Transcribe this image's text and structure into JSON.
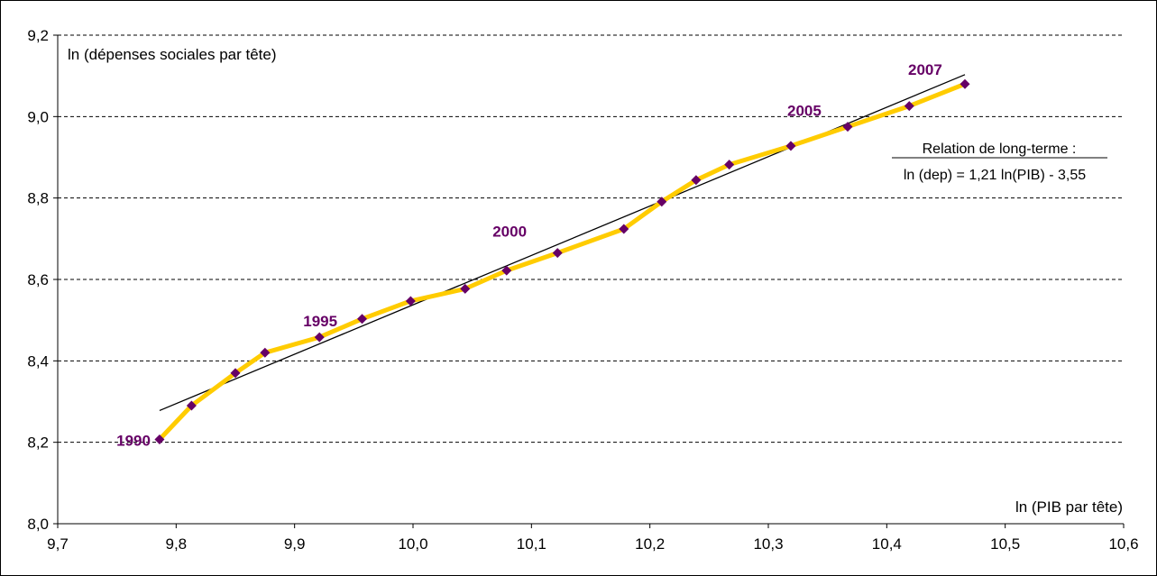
{
  "chart_data": {
    "type": "line",
    "ylabel": "ln (dépenses sociales par tête)",
    "xlabel": "ln (PIB par tête)",
    "xlim": [
      9.7,
      10.6
    ],
    "ylim": [
      8.0,
      9.2
    ],
    "x_ticks": [
      "9,7",
      "9,8",
      "9,9",
      "10,0",
      "10,1",
      "10,2",
      "10,3",
      "10,4",
      "10,5",
      "10,6"
    ],
    "y_ticks": [
      "8,0",
      "8,2",
      "8,4",
      "8,6",
      "8,8",
      "9,0",
      "9,2"
    ],
    "grid": "horizontal dashed",
    "series": [
      {
        "points": [
          {
            "x": 9.786,
            "y": 8.207
          },
          {
            "x": 9.813,
            "y": 8.29
          },
          {
            "x": 9.85,
            "y": 8.37
          },
          {
            "x": 9.875,
            "y": 8.42
          },
          {
            "x": 9.921,
            "y": 8.458
          },
          {
            "x": 9.957,
            "y": 8.503
          },
          {
            "x": 9.998,
            "y": 8.547
          },
          {
            "x": 10.044,
            "y": 8.577
          },
          {
            "x": 10.079,
            "y": 8.622
          },
          {
            "x": 10.122,
            "y": 8.665
          },
          {
            "x": 10.178,
            "y": 8.724
          },
          {
            "x": 10.21,
            "y": 8.791
          },
          {
            "x": 10.239,
            "y": 8.844
          },
          {
            "x": 10.267,
            "y": 8.882
          },
          {
            "x": 10.319,
            "y": 8.928
          },
          {
            "x": 10.367,
            "y": 8.975
          },
          {
            "x": 10.419,
            "y": 9.026
          },
          {
            "x": 10.466,
            "y": 9.08
          }
        ],
        "color": "#ffcc00",
        "marker_color": "#660066"
      }
    ],
    "trend_line": {
      "x_start": 9.786,
      "x_end": 10.466,
      "y_start": 8.278,
      "y_end": 9.103,
      "color": "#000000"
    },
    "year_labels": [
      {
        "text": "1990",
        "x": 9.786,
        "y": 8.207
      },
      {
        "text": "1995",
        "x": 9.921,
        "y": 8.458
      },
      {
        "text": "2000",
        "x": 10.122,
        "y": 8.665
      },
      {
        "text": "2005",
        "x": 10.367,
        "y": 8.975
      },
      {
        "text": "2007",
        "x": 10.466,
        "y": 9.08
      }
    ],
    "annotation": {
      "title": "Relation de long-terme :",
      "equation": "ln (dep) = 1,21 ln(PIB) - 3,55"
    }
  }
}
